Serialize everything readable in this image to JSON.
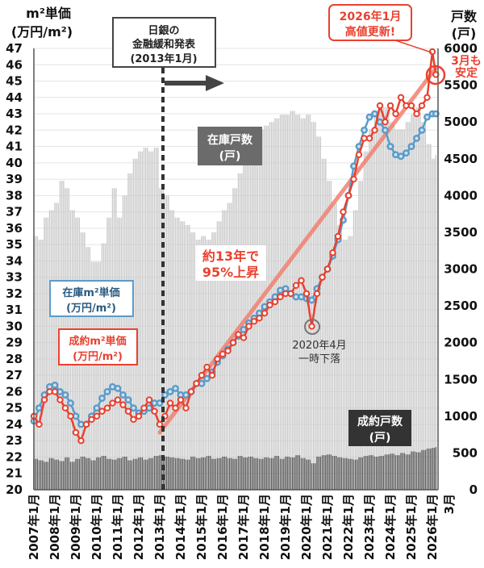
{
  "chart_data": {
    "type": "line+bar",
    "left_axis": {
      "title_line1": "m²単価",
      "title_line2": "(万円/m²)",
      "range": [
        20,
        47
      ],
      "ticks": [
        "20",
        "21",
        "22",
        "23",
        "24",
        "25",
        "26",
        "27",
        "28",
        "29",
        "30",
        "31",
        "32",
        "33",
        "34",
        "35",
        "36",
        "37",
        "38",
        "39",
        "40",
        "41",
        "42",
        "43",
        "44",
        "45",
        "46",
        "47"
      ]
    },
    "right_axis": {
      "title_line1": "戸数",
      "title_line2": "(戸)",
      "range": [
        0,
        6000
      ],
      "ticks": [
        "0",
        "500",
        "1000",
        "1500",
        "2000",
        "2500",
        "3000",
        "3500",
        "4000",
        "4500",
        "5000",
        "5500",
        "6000"
      ]
    },
    "x_tick_labels": [
      "2007年1月",
      "2008年1月",
      "2009年1月",
      "2010年1月",
      "2011年1月",
      "2012年1月",
      "2013年1月",
      "2014年1月",
      "2015年1月",
      "2016年1月",
      "2017年1月",
      "2018年1月",
      "2019年1月",
      "2020年1月",
      "2021年1月",
      "2022年1月",
      "2023年1月",
      "2024年1月",
      "2025年1月",
      "2026年1月"
    ],
    "x_last_label": "3月",
    "grid": "horizontal",
    "x": [
      "2007-01",
      "2007-04",
      "2007-07",
      "2007-10",
      "2008-01",
      "2008-04",
      "2008-07",
      "2008-10",
      "2009-01",
      "2009-04",
      "2009-07",
      "2009-10",
      "2010-01",
      "2010-04",
      "2010-07",
      "2010-10",
      "2011-01",
      "2011-04",
      "2011-07",
      "2011-10",
      "2012-01",
      "2012-04",
      "2012-07",
      "2012-10",
      "2013-01",
      "2013-04",
      "2013-07",
      "2013-10",
      "2014-01",
      "2014-04",
      "2014-07",
      "2014-10",
      "2015-01",
      "2015-04",
      "2015-07",
      "2015-10",
      "2016-01",
      "2016-04",
      "2016-07",
      "2016-10",
      "2017-01",
      "2017-04",
      "2017-07",
      "2017-10",
      "2018-01",
      "2018-04",
      "2018-07",
      "2018-10",
      "2019-01",
      "2019-04",
      "2019-07",
      "2019-10",
      "2020-01",
      "2020-04",
      "2020-07",
      "2020-10",
      "2021-01",
      "2021-04",
      "2021-07",
      "2021-10",
      "2022-01",
      "2022-04",
      "2022-07",
      "2022-10",
      "2023-01",
      "2023-04",
      "2023-07",
      "2023-10",
      "2024-01",
      "2024-04",
      "2024-07",
      "2024-10",
      "2025-01",
      "2025-04",
      "2025-07",
      "2025-10",
      "2026-01",
      "2026-03"
    ],
    "series": [
      {
        "name": "成約m²単価",
        "name_line2": "(万円/m²)",
        "axis": "left",
        "kind": "line",
        "color": "#e8412f",
        "values": [
          24.5,
          24.0,
          25.5,
          26.0,
          26.0,
          25.5,
          25.0,
          24.5,
          23.5,
          23.0,
          24.0,
          24.3,
          24.5,
          24.8,
          25.0,
          25.3,
          25.5,
          25.2,
          24.8,
          24.3,
          24.5,
          25.0,
          25.5,
          24.8,
          24.0,
          24.5,
          25.3,
          25.0,
          25.5,
          25.0,
          26.0,
          26.5,
          27.0,
          27.5,
          27.0,
          28.0,
          28.3,
          28.5,
          29.0,
          29.5,
          29.3,
          30.0,
          30.3,
          30.5,
          30.8,
          31.3,
          31.5,
          31.8,
          32.0,
          32.0,
          32.5,
          32.8,
          32.0,
          30.0,
          32.0,
          33.0,
          33.5,
          34.5,
          35.5,
          37.0,
          38.0,
          39.0,
          40.5,
          41.5,
          41.5,
          42.0,
          43.5,
          42.5,
          43.5,
          43.0,
          44.0,
          43.5,
          43.5,
          43.0,
          43.5,
          44.0,
          46.8,
          45.4
        ]
      },
      {
        "name": "在庫m²単価",
        "name_line2": "(万円/m²)",
        "axis": "left",
        "kind": "line",
        "color": "#5b9bc8",
        "values": [
          24.2,
          25.0,
          25.8,
          26.3,
          26.4,
          26.0,
          25.8,
          25.3,
          24.5,
          24.0,
          24.0,
          24.5,
          25.0,
          25.6,
          26.0,
          26.3,
          26.2,
          25.8,
          25.5,
          25.0,
          24.7,
          24.8,
          25.0,
          25.3,
          25.3,
          25.8,
          26.0,
          26.2,
          25.8,
          25.8,
          26.0,
          26.5,
          26.5,
          26.8,
          27.2,
          27.8,
          28.2,
          28.6,
          29.0,
          29.4,
          29.8,
          30.2,
          30.5,
          30.8,
          31.2,
          31.5,
          31.8,
          32.2,
          32.3,
          32.0,
          31.8,
          31.8,
          31.7,
          31.6,
          32.3,
          33.0,
          33.5,
          34.3,
          35.3,
          36.5,
          38.0,
          39.8,
          41.0,
          42.0,
          42.8,
          43.0,
          42.5,
          42.0,
          41.0,
          40.5,
          40.4,
          40.6,
          41.0,
          41.5,
          42.0,
          42.8,
          43.0,
          43.0
        ]
      },
      {
        "name": "在庫戸数",
        "name_line2": "(戸)",
        "axis": "right",
        "kind": "bar",
        "color": "#c9c9c9",
        "values": [
          3450,
          3400,
          3700,
          3800,
          3900,
          4200,
          4100,
          3800,
          3700,
          3500,
          3300,
          3100,
          3100,
          3350,
          3700,
          4100,
          3700,
          4000,
          4300,
          4500,
          4600,
          4650,
          4600,
          4650,
          4100,
          4000,
          3800,
          3700,
          3650,
          3600,
          3500,
          3400,
          3450,
          3400,
          3500,
          3650,
          3800,
          3900,
          4100,
          4300,
          4500,
          4700,
          4800,
          4900,
          4950,
          5000,
          5050,
          5100,
          5100,
          5150,
          5100,
          5050,
          5100,
          5000,
          4800,
          4500,
          4200,
          3900,
          3600,
          3400,
          3450,
          3800,
          4200,
          4600,
          4900,
          5100,
          5200,
          5200,
          5000,
          4900,
          4900,
          5000,
          5100,
          5200,
          5000,
          4700,
          4500,
          4550
        ]
      },
      {
        "name": "成約戸数",
        "name_line2": "(戸)",
        "axis": "right",
        "kind": "bar",
        "color": "#555555",
        "values": [
          420,
          400,
          380,
          430,
          410,
          390,
          440,
          380,
          420,
          450,
          430,
          400,
          440,
          460,
          420,
          410,
          430,
          450,
          400,
          420,
          440,
          410,
          430,
          460,
          470,
          450,
          440,
          430,
          420,
          410,
          450,
          430,
          440,
          460,
          420,
          430,
          450,
          430,
          420,
          460,
          440,
          450,
          430,
          420,
          440,
          430,
          460,
          420,
          450,
          440,
          470,
          430,
          410,
          360,
          450,
          470,
          480,
          460,
          440,
          430,
          420,
          410,
          440,
          460,
          470,
          450,
          460,
          480,
          490,
          470,
          500,
          480,
          520,
          510,
          540,
          560,
          570,
          580
        ]
      },
      {
        "name": "trend",
        "axis": "left",
        "kind": "trendline",
        "color": "#f08070",
        "x": [
          "2013-01",
          "2026-03"
        ],
        "values": [
          23.5,
          45.8
        ]
      }
    ],
    "annotations": {
      "boj": {
        "line1": "日銀の",
        "line2": "金融緩和発表",
        "line3": "(2013年1月)",
        "at": "2013-01"
      },
      "rise": {
        "line1": "約13年で",
        "line2": "95%上昇"
      },
      "dip": {
        "line1": "2020年4月",
        "line2": "一時下落",
        "at": "2020-04"
      },
      "high": {
        "line1": "2026年1月",
        "line2": "高値更新!",
        "at": "2026-01"
      },
      "stable": {
        "line1": "3月も",
        "line2": "安定",
        "at": "2026-03"
      }
    }
  }
}
